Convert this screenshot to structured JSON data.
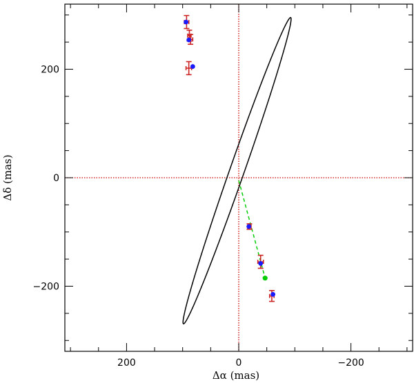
{
  "chart_data": {
    "type": "scatter",
    "title": "",
    "xlabel": "Δα (mas)",
    "ylabel": "Δδ (mas)",
    "xlim": [
      310,
      -310
    ],
    "ylim": [
      -320,
      320
    ],
    "x_major_ticks": [
      200,
      0,
      -200
    ],
    "x_tick_labels": [
      "200",
      "0",
      "−200"
    ],
    "y_major_ticks": [
      200,
      0,
      -200
    ],
    "y_tick_labels": [
      "200",
      "0",
      "−200"
    ],
    "grid": false,
    "reference_lines": [
      {
        "orientation": "vertical",
        "value": 0,
        "color": "#cc0000",
        "style": "dotted"
      },
      {
        "orientation": "horizontal",
        "value": 0,
        "color": "#cc0000",
        "style": "dotted"
      }
    ],
    "orbit": {
      "type": "ellipse",
      "color": "#000000",
      "center": [
        3,
        13
      ],
      "semi_major_axis": 298,
      "semi_minor_axis": 13,
      "position_angle_deg": 161.3
    },
    "periastron_to_center_line": {
      "color": "#00cc00",
      "style": "dashed",
      "points": [
        [
          0,
          -5
        ],
        [
          -47,
          -185
        ]
      ]
    },
    "series": [
      {
        "name": "",
        "kind": "observed",
        "color": "#cc2222",
        "marker": "errorbar",
        "points": [
          {
            "x": 93,
            "y": 287,
            "xerr": 4,
            "yerr": 12
          },
          {
            "x": 88,
            "y": 262,
            "xerr": 3,
            "yerr": 10
          },
          {
            "x": 86,
            "y": 255,
            "xerr": 4,
            "yerr": 9
          },
          {
            "x": 89,
            "y": 202,
            "xerr": 5,
            "yerr": 12
          },
          {
            "x": -19,
            "y": -90,
            "xerr": 3,
            "yerr": 5
          },
          {
            "x": -39,
            "y": -155,
            "xerr": 5,
            "yerr": 12
          },
          {
            "x": -59,
            "y": -218,
            "xerr": 4,
            "yerr": 10
          }
        ]
      },
      {
        "name": "",
        "kind": "model",
        "color": "#1a1aff",
        "marker": "circle",
        "points": [
          {
            "x": 94,
            "y": 287
          },
          {
            "x": 89,
            "y": 254
          },
          {
            "x": 82,
            "y": 205
          },
          {
            "x": -18,
            "y": -90
          },
          {
            "x": -39,
            "y": -158
          },
          {
            "x": -61,
            "y": -215
          }
        ]
      },
      {
        "name": "",
        "kind": "periastron",
        "color": "#00cc00",
        "marker": "circle",
        "points": [
          {
            "x": -47,
            "y": -185
          }
        ]
      }
    ]
  }
}
